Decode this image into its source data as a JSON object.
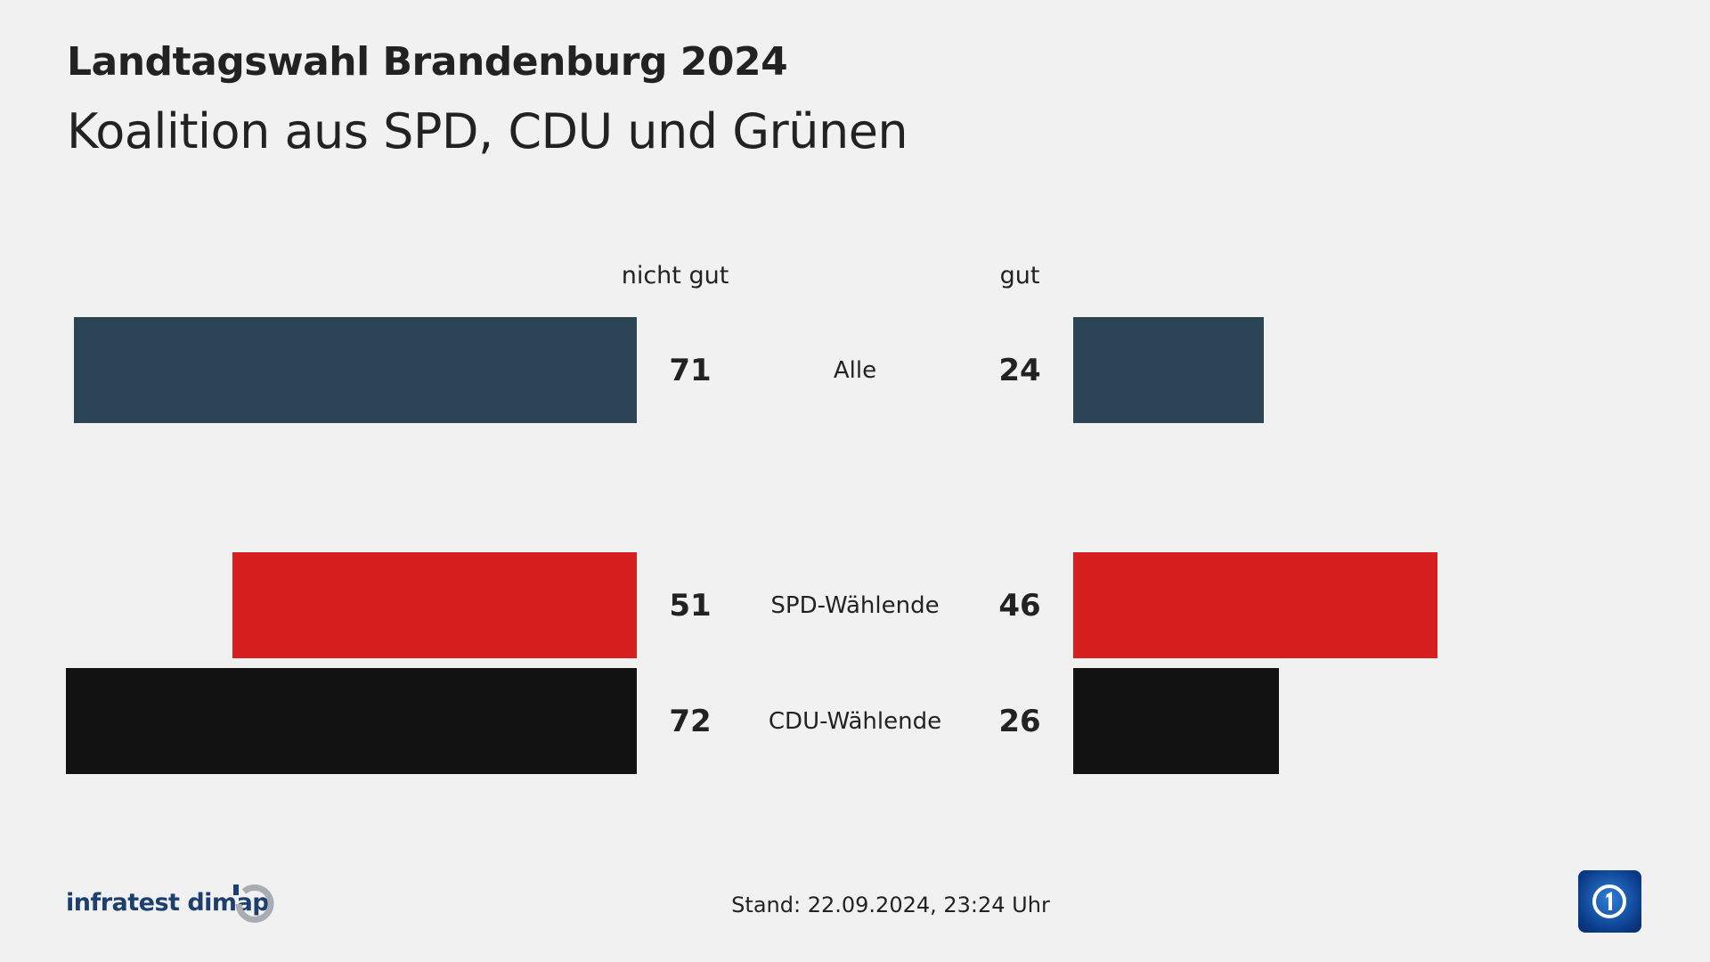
{
  "header": {
    "title": "Landtagswahl Brandenburg 2024",
    "subtitle": "Koalition aus SPD, CDU und Grünen"
  },
  "chart_data": {
    "type": "bar",
    "orientation": "horizontal-diverging",
    "column_headers": {
      "left": "nicht gut",
      "right": "gut"
    },
    "categories": [
      "Alle",
      "SPD-Wählende",
      "CDU-Wählende"
    ],
    "series": [
      {
        "name": "nicht gut",
        "values": [
          71,
          51,
          72
        ]
      },
      {
        "name": "gut",
        "values": [
          24,
          46,
          26
        ]
      }
    ],
    "colors": [
      "#2b4557",
      "#d71f1f",
      "#121212"
    ],
    "unit": "%"
  },
  "footer": {
    "source": "infratest dimap",
    "stand_label": "Stand:",
    "stand_value": "22.09.2024, 23:24 Uhr",
    "logo": "tagesschau-logo"
  }
}
